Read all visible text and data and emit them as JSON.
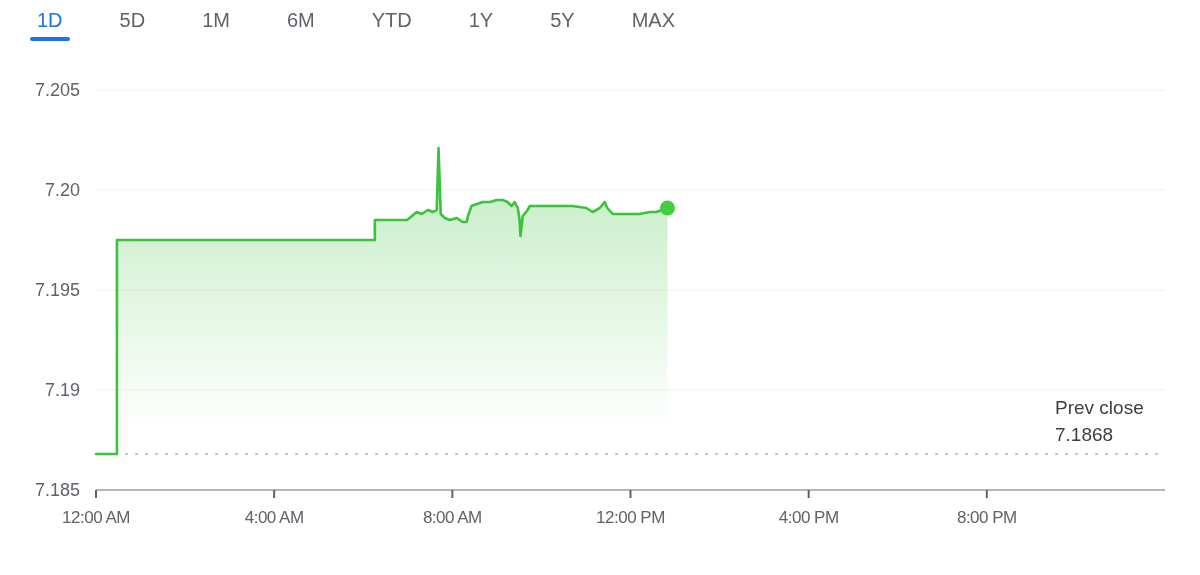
{
  "chart_data": {
    "type": "area",
    "annotations": [
      "1D",
      "5D",
      "1M",
      "6M",
      "YTD",
      "1Y",
      "5Y",
      "MAX"
    ],
    "xlim": [
      0,
      24
    ],
    "xticks": [
      {
        "value": 0,
        "label": "12:00 AM"
      },
      {
        "value": 4,
        "label": "4:00 AM"
      },
      {
        "value": 8,
        "label": "8:00 AM"
      },
      {
        "value": 12,
        "label": "12:00 PM"
      },
      {
        "value": 16,
        "label": "4:00 PM"
      },
      {
        "value": 20,
        "label": "8:00 PM"
      }
    ],
    "ylim": [
      7.185,
      7.205
    ],
    "yticks": [
      7.185,
      7.19,
      7.195,
      {
        "value": 7.2,
        "label": "7.20"
      },
      7.205
    ],
    "grid": "y",
    "line_style": "solid",
    "series": [
      {
        "color": "#3cc23c",
        "x": [
          0,
          0.47,
          0.47,
          6.26,
          6.26,
          6.98,
          7.04,
          7.2,
          7.31,
          7.45,
          7.56,
          7.65,
          7.69,
          7.74,
          7.83,
          7.94,
          8.1,
          8.23,
          8.32,
          8.35,
          8.43,
          8.55,
          8.68,
          8.84,
          9.0,
          9.13,
          9.24,
          9.33,
          9.4,
          9.47,
          9.51,
          9.53,
          9.58,
          9.62,
          9.69,
          9.74,
          10.7,
          11.01,
          11.15,
          11.31,
          11.42,
          11.48,
          11.6,
          12.2,
          12.43,
          12.58,
          12.83
        ],
        "values": [
          7.1868,
          7.1868,
          7.1975,
          7.1975,
          7.1985,
          7.1985,
          7.1986,
          7.1989,
          7.1988,
          7.199,
          7.1989,
          7.199,
          7.2021,
          7.1988,
          7.1986,
          7.1985,
          7.1986,
          7.1984,
          7.1984,
          7.1987,
          7.1992,
          7.1993,
          7.1994,
          7.1994,
          7.1995,
          7.1995,
          7.1994,
          7.1992,
          7.1994,
          7.1991,
          7.1985,
          7.1977,
          7.1987,
          7.1988,
          7.199,
          7.1992,
          7.1992,
          7.1991,
          7.1989,
          7.1991,
          7.1994,
          7.1991,
          7.1988,
          7.1988,
          7.1989,
          7.1989,
          7.1991
        ]
      },
      {
        "type": "scatter",
        "marker": "circle",
        "color": "#3fd03f",
        "x": [
          12.83
        ],
        "values": [
          7.1991
        ]
      }
    ],
    "ref_lines": [
      {
        "axis": "y",
        "value": 7.1868,
        "label": "Prev close\n7.1868",
        "color": "#bdbdbd",
        "line_style": "dotted"
      }
    ]
  }
}
